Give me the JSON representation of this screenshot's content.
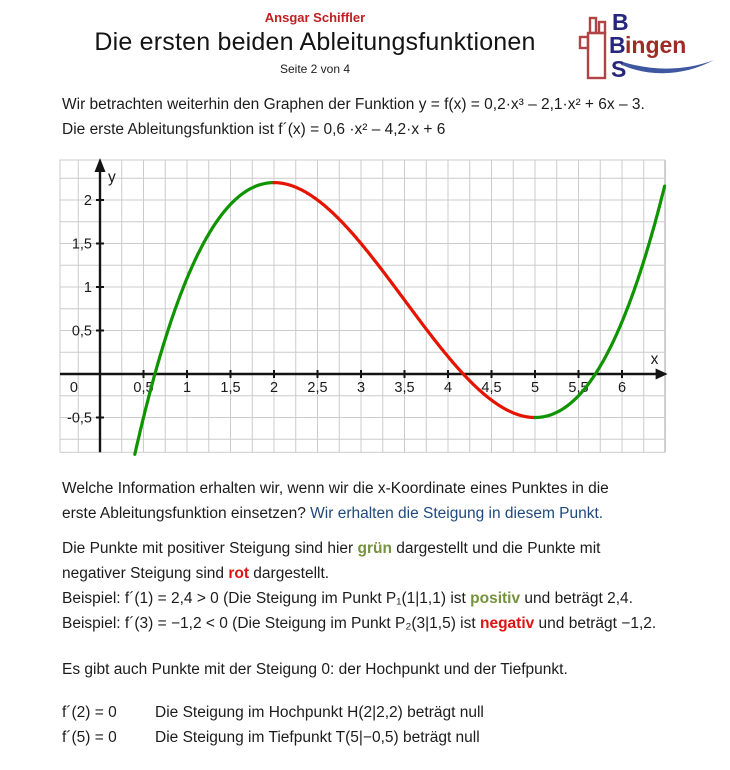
{
  "header": {
    "author": "Ansgar Schiffler",
    "title": "Die ersten beiden Ableitungsfunktionen",
    "page_indicator": "Seite 2 von 4",
    "logo": {
      "icon": "castle-tower-icon",
      "letter_top": "B",
      "letter_middle": "B",
      "letter_bottom": "S",
      "word_suffix": "ingen",
      "full_name": "BBS Bingen",
      "letter_color": "#26267e",
      "suffix_color": "#9e2b25",
      "tower_color": "#b04343",
      "swoosh_color": "#3f57a0"
    }
  },
  "intro": {
    "line1": "Wir betrachten weiterhin den Graphen der Funktion y = f(x) = 0,2·x³ – 2,1·x² + 6x – 3.",
    "line2": "Die erste Ableitungsfunktion ist f´(x) = 0,6 ·x² – 4,2·x + 6"
  },
  "chart_data": {
    "type": "line",
    "title": "",
    "function_label": "f(x) = 0,2·x³ – 2,1·x² + 6x – 3",
    "derivative_label": "f´(x) = 0,6·x² – 4,2·x + 6",
    "coefficients": [
      -3,
      6,
      -2.1,
      0.2
    ],
    "x_axis_label": "x",
    "y_axis_label": "y",
    "x_plot_range": [
      -0.46,
      6.49
    ],
    "y_plot_range": [
      -0.9,
      2.46
    ],
    "grid_step": 0.25,
    "tick_step": 0.5,
    "grid_on": true,
    "x_tick_labels": [
      "0,5",
      "1",
      "1,5",
      "2",
      "2,5",
      "3",
      "3,5",
      "4",
      "4,5",
      "5",
      "5,5",
      "6"
    ],
    "y_tick_labels": [
      "2",
      "1,5",
      "1",
      "0,5",
      "-0,5"
    ],
    "origin_label": "0",
    "curve_segments": [
      {
        "x_from": 0.4,
        "x_to": 2.0,
        "color": "#0f9400",
        "slope": "positive"
      },
      {
        "x_from": 2.0,
        "x_to": 5.0,
        "color": "#e51400",
        "slope": "negative"
      },
      {
        "x_from": 5.0,
        "x_to": 6.49,
        "color": "#0f9400",
        "slope": "positive"
      }
    ],
    "hochpunkt": {
      "x": 2,
      "y": 2.2,
      "label": "H(2|2,2)"
    },
    "tiefpunkt": {
      "x": 5,
      "y": -0.5,
      "label": "T(5|−0,5)"
    },
    "x_intercepts": [
      0.63,
      4.17,
      5.7
    ],
    "colors": {
      "grid": "#cccccc",
      "axis": "#141414",
      "tick_text": "#1a1a1a"
    }
  },
  "question": {
    "line1": "Welche Information erhalten wir, wenn wir die x-Koordinate eines Punktes in die",
    "line2_prefix": "erste Ableitungsfunktion einsetzen? ",
    "line2_answer": "Wir erhalten die Steigung in diesem Punkt.",
    "answer_color": "#1f497d"
  },
  "slopes": {
    "line1": [
      {
        "text": "Die Punkte mit positiver Steigung sind hier "
      },
      {
        "text": "grün",
        "style": "green"
      },
      {
        "text": " dargestellt und die Punkte mit"
      }
    ],
    "line2": [
      {
        "text": "negativer Steigung sind "
      },
      {
        "text": "rot",
        "style": "red"
      },
      {
        "text": " dargestellt."
      }
    ],
    "line3": [
      {
        "text": "Beispiel: f´(1) = 2,4  > 0   (Die Steigung im Punkt P₁(1|1,1) ist "
      },
      {
        "text": "positiv",
        "style": "green"
      },
      {
        "text": " und beträgt 2,4."
      }
    ],
    "line4": [
      {
        "text": "Beispiel: f´(3) = −1,2  < 0 (Die Steigung im Punkt P₂(3|1,5) ist "
      },
      {
        "text": "negativ",
        "style": "red"
      },
      {
        "text": " und beträgt −1,2."
      }
    ],
    "green_color": "#76923c",
    "red_color": "#e01212"
  },
  "extrema": {
    "intro": "Es gibt auch Punkte mit der Steigung 0: der Hochpunkt und der Tiefpunkt.",
    "rows": [
      {
        "formula": "f´(2) = 0",
        "description": "Die Steigung im Hochpunkt H(2|2,2) beträgt null"
      },
      {
        "formula": "f´(5) = 0",
        "description": "Die Steigung im Tiefpunkt T(5|−0,5) beträgt null"
      }
    ]
  }
}
